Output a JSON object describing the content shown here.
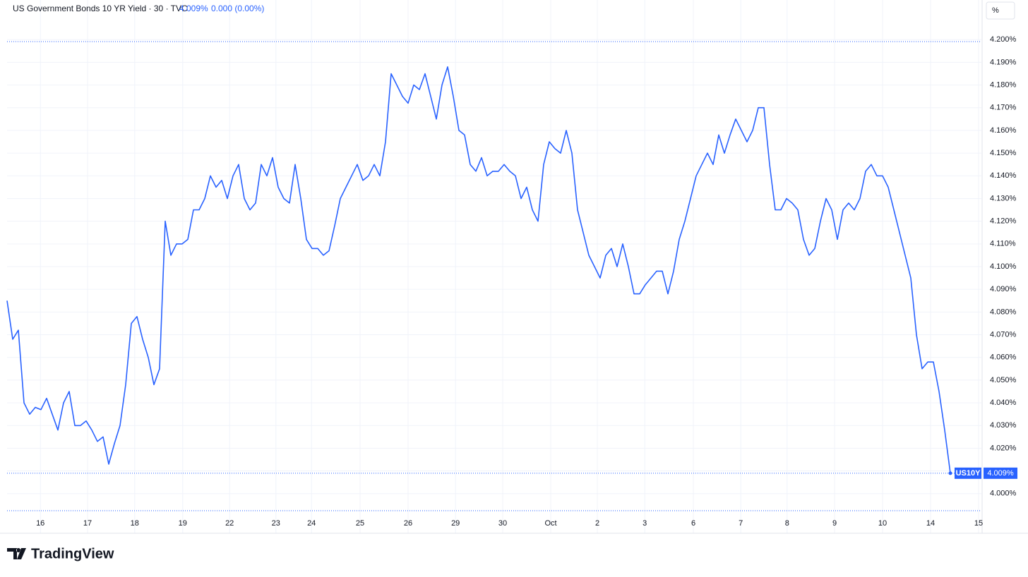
{
  "chart_data": {
    "type": "line",
    "title": "US Government Bonds 10 YR Yield · 30 · TVC",
    "price_label": "4.009%",
    "change_label": "0.000 (0.00%)",
    "unit": "%",
    "symbol": "US10Y",
    "grid": true,
    "series": [
      {
        "name": "US10Y",
        "color": "#2962ff",
        "values": [
          4.085,
          4.068,
          4.072,
          4.04,
          4.035,
          4.038,
          4.037,
          4.042,
          4.035,
          4.028,
          4.04,
          4.045,
          4.03,
          4.03,
          4.032,
          4.028,
          4.023,
          4.025,
          4.013,
          4.022,
          4.03,
          4.048,
          4.075,
          4.078,
          4.068,
          4.06,
          4.048,
          4.055,
          4.12,
          4.105,
          4.11,
          4.11,
          4.112,
          4.125,
          4.125,
          4.13,
          4.14,
          4.135,
          4.138,
          4.13,
          4.14,
          4.145,
          4.13,
          4.125,
          4.128,
          4.145,
          4.14,
          4.148,
          4.135,
          4.13,
          4.128,
          4.145,
          4.13,
          4.112,
          4.108,
          4.108,
          4.105,
          4.107,
          4.118,
          4.13,
          4.135,
          4.14,
          4.145,
          4.138,
          4.14,
          4.145,
          4.14,
          4.155,
          4.185,
          4.18,
          4.175,
          4.172,
          4.18,
          4.178,
          4.185,
          4.175,
          4.165,
          4.18,
          4.188,
          4.175,
          4.16,
          4.158,
          4.145,
          4.142,
          4.148,
          4.14,
          4.142,
          4.142,
          4.145,
          4.142,
          4.14,
          4.13,
          4.135,
          4.125,
          4.12,
          4.145,
          4.155,
          4.152,
          4.15,
          4.16,
          4.15,
          4.125,
          4.115,
          4.105,
          4.1,
          4.095,
          4.105,
          4.108,
          4.1,
          4.11,
          4.1,
          4.088,
          4.088,
          4.092,
          4.095,
          4.098,
          4.098,
          4.088,
          4.098,
          4.112,
          4.12,
          4.13,
          4.14,
          4.145,
          4.15,
          4.145,
          4.158,
          4.15,
          4.158,
          4.165,
          4.16,
          4.155,
          4.16,
          4.17,
          4.17,
          4.145,
          4.125,
          4.125,
          4.13,
          4.128,
          4.125,
          4.112,
          4.105,
          4.108,
          4.12,
          4.13,
          4.125,
          4.112,
          4.125,
          4.128,
          4.125,
          4.13,
          4.142,
          4.145,
          4.14,
          4.14,
          4.135,
          4.125,
          4.115,
          4.105,
          4.095,
          4.07,
          4.055,
          4.058,
          4.058,
          4.045,
          4.028,
          4.009
        ]
      }
    ],
    "xlim": [
      0,
      172.5
    ],
    "xticks": [
      {
        "value": 5.9,
        "label": "16"
      },
      {
        "value": 14.25,
        "label": "17"
      },
      {
        "value": 22.6,
        "label": "18"
      },
      {
        "value": 31.1,
        "label": "19"
      },
      {
        "value": 39.4,
        "label": "22"
      },
      {
        "value": 47.6,
        "label": "23"
      },
      {
        "value": 53.9,
        "label": "24"
      },
      {
        "value": 62.5,
        "label": "25"
      },
      {
        "value": 71,
        "label": "26"
      },
      {
        "value": 79.4,
        "label": "29"
      },
      {
        "value": 87.75,
        "label": "30"
      },
      {
        "value": 96.25,
        "label": "Oct"
      },
      {
        "value": 104.5,
        "label": "2"
      },
      {
        "value": 112.9,
        "label": "3"
      },
      {
        "value": 121.5,
        "label": "6"
      },
      {
        "value": 129.9,
        "label": "7"
      },
      {
        "value": 138.1,
        "label": "8"
      },
      {
        "value": 146.5,
        "label": "9"
      },
      {
        "value": 155,
        "label": "10"
      },
      {
        "value": 163.5,
        "label": "14"
      },
      {
        "value": 172,
        "label": "15"
      }
    ],
    "ylim": [
      3.99,
      4.21
    ],
    "yticks": [
      {
        "value": 4.0,
        "label": "4.000%"
      },
      {
        "value": 4.01,
        "label": "4.010%"
      },
      {
        "value": 4.02,
        "label": "4.020%"
      },
      {
        "value": 4.03,
        "label": "4.030%"
      },
      {
        "value": 4.04,
        "label": "4.040%"
      },
      {
        "value": 4.05,
        "label": "4.050%"
      },
      {
        "value": 4.06,
        "label": "4.060%"
      },
      {
        "value": 4.07,
        "label": "4.070%"
      },
      {
        "value": 4.08,
        "label": "4.080%"
      },
      {
        "value": 4.09,
        "label": "4.090%"
      },
      {
        "value": 4.1,
        "label": "4.100%"
      },
      {
        "value": 4.11,
        "label": "4.110%"
      },
      {
        "value": 4.12,
        "label": "4.120%"
      },
      {
        "value": 4.13,
        "label": "4.130%"
      },
      {
        "value": 4.14,
        "label": "4.140%"
      },
      {
        "value": 4.15,
        "label": "4.150%"
      },
      {
        "value": 4.16,
        "label": "4.160%"
      },
      {
        "value": 4.17,
        "label": "4.170%"
      },
      {
        "value": 4.18,
        "label": "4.180%"
      },
      {
        "value": 4.19,
        "label": "4.190%"
      },
      {
        "value": 4.2,
        "label": "4.200%"
      }
    ]
  },
  "brand": "TradingView"
}
